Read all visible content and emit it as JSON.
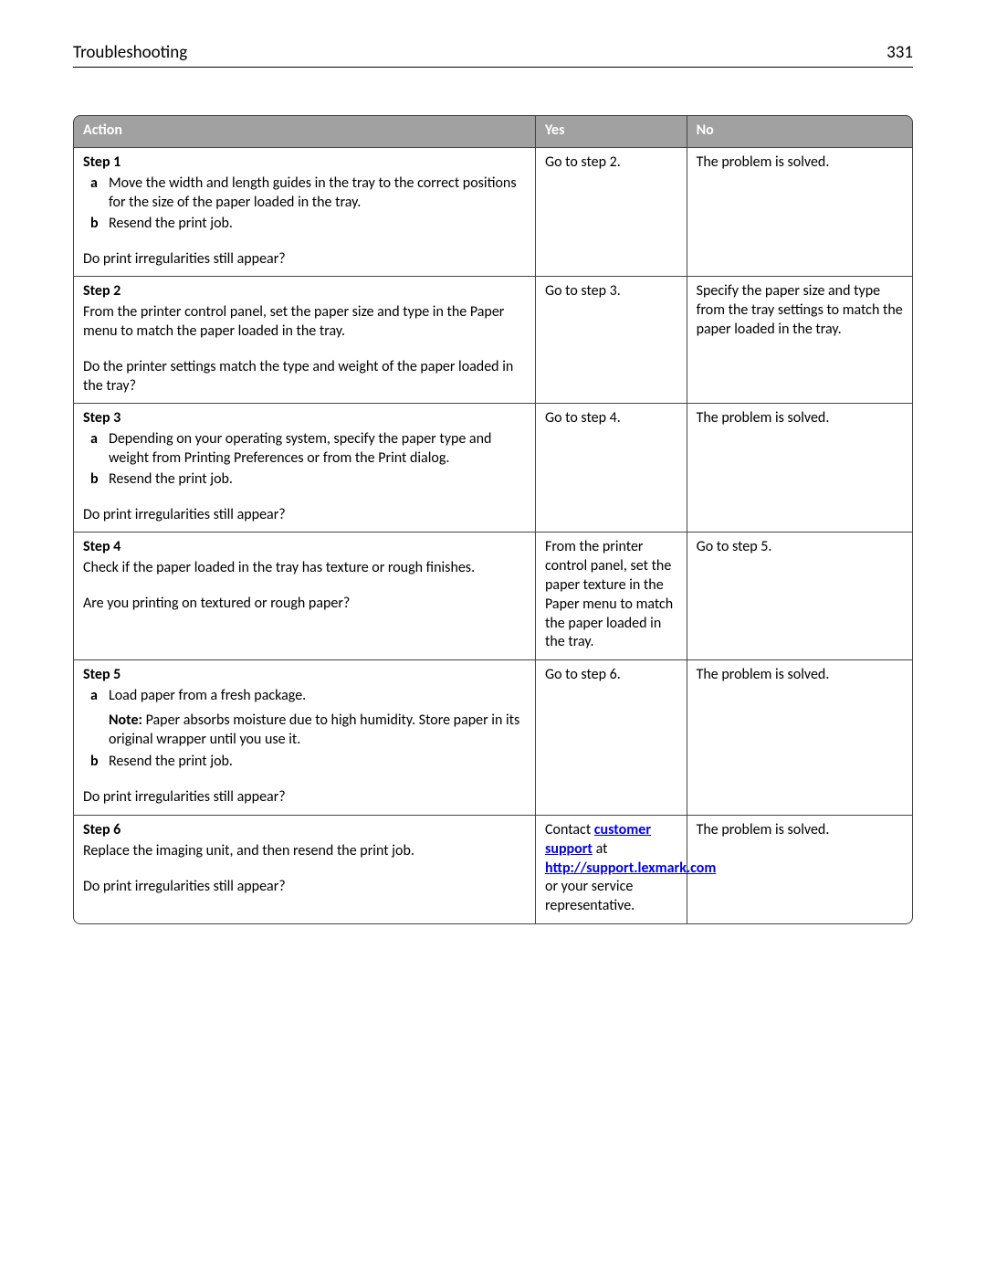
{
  "header": {
    "title": "Troubleshooting",
    "page_number": "331"
  },
  "table": {
    "columns": {
      "action": "Action",
      "yes": "Yes",
      "no": "No"
    },
    "rows": [
      {
        "step": "Step 1",
        "a": "Move the width and length guides in the tray to the correct positions for the size of the paper loaded in the tray.",
        "b": "Resend the print job.",
        "q": "Do print irregularities still appear?",
        "yes": "Go to step 2.",
        "no": "The problem is solved."
      },
      {
        "step": "Step 2",
        "body": "From the printer control panel, set the paper size and type in the Paper menu to match the paper loaded in the tray.",
        "q": "Do the printer settings match the type and weight of the paper loaded in the tray?",
        "yes": "Go to step 3.",
        "no": "Specify the paper size and type from the tray settings to match the paper loaded in the tray."
      },
      {
        "step": "Step 3",
        "a": "Depending on your operating system, specify the paper type and weight from Printing Preferences or from the Print dialog.",
        "b": "Resend the print job.",
        "q": "Do print irregularities still appear?",
        "yes": "Go to step 4.",
        "no": "The problem is solved."
      },
      {
        "step": "Step 4",
        "body": "Check if the paper loaded in the tray has texture or rough finishes.",
        "q": "Are you printing on textured or rough paper?",
        "yes": "From the printer control panel, set the paper texture in the Paper menu to match the paper loaded in the tray.",
        "no": "Go to step 5."
      },
      {
        "step": "Step 5",
        "a": "Load paper from a fresh package.",
        "note_label": "Note:",
        "note": "Paper absorbs moisture due to high humidity. Store paper in its original wrapper until you use it.",
        "b": "Resend the print job.",
        "q": "Do print irregularities still appear?",
        "yes": "Go to step 6.",
        "no": "The problem is solved."
      },
      {
        "step": "Step 6",
        "body": "Replace the imaging unit, and then resend the print job.",
        "q": "Do print irregularities still appear?",
        "yes_pre": "Contact ",
        "yes_link1": "customer support",
        "yes_mid": " at ",
        "yes_link2": "http://support.lexmark.com",
        "yes_post": " or your service representative.",
        "no": "The problem is solved."
      }
    ]
  }
}
